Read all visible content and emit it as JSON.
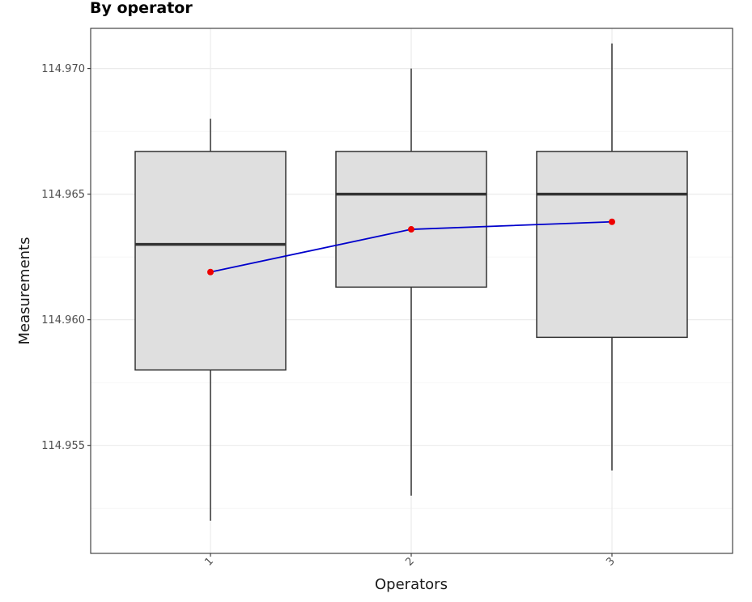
{
  "chart_data": {
    "type": "box",
    "title": "By operator",
    "xlabel": "Operators",
    "ylabel": "Measurements",
    "categories": [
      "1",
      "2",
      "3"
    ],
    "ylim": [
      114.9507,
      114.9716
    ],
    "yticks": [
      "114.955",
      "114.960",
      "114.965",
      "114.970"
    ],
    "grid": true,
    "boxes": [
      {
        "category": "1",
        "min": 114.952,
        "q1": 114.958,
        "median": 114.963,
        "q3": 114.9667,
        "max": 114.968
      },
      {
        "category": "2",
        "min": 114.953,
        "q1": 114.9613,
        "median": 114.965,
        "q3": 114.9667,
        "max": 114.97
      },
      {
        "category": "3",
        "min": 114.954,
        "q1": 114.9593,
        "median": 114.965,
        "q3": 114.9667,
        "max": 114.971
      }
    ],
    "mean_series": {
      "values": [
        114.9619,
        114.9636,
        114.9639
      ],
      "line_color": "#0000cc",
      "point_color": "#ee0000"
    },
    "box_fill": "#dfdfdf",
    "box_stroke": "#333333"
  }
}
